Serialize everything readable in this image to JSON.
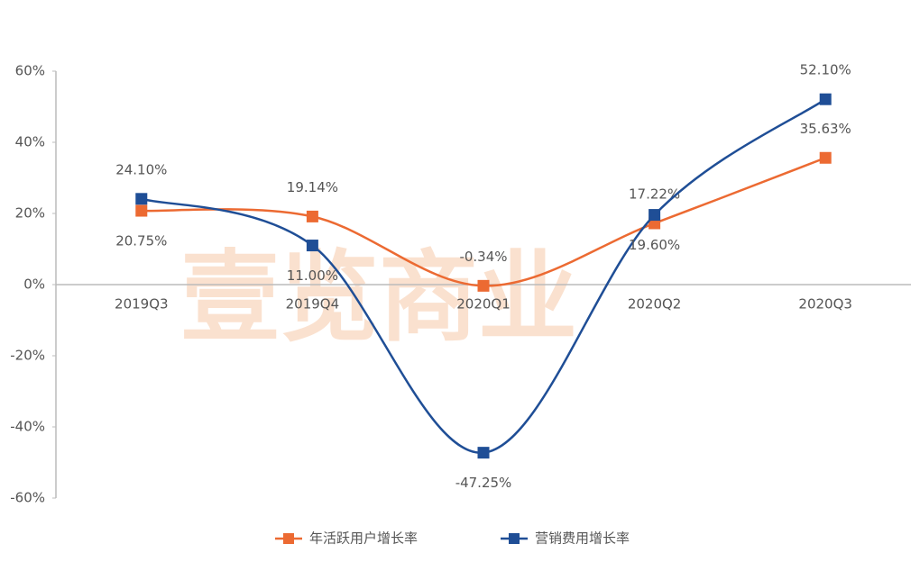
{
  "chart_data": {
    "type": "line",
    "watermark": "壹览商业",
    "categories": [
      "2019Q3",
      "2019Q4",
      "2020Q1",
      "2020Q2",
      "2020Q3"
    ],
    "series": [
      {
        "name": "年活跃用户增长率",
        "color": "#ec6a32",
        "values": [
          20.75,
          19.14,
          -0.34,
          17.22,
          35.63
        ],
        "value_labels": [
          "20.75%",
          "19.14%",
          "-0.34%",
          "17.22%",
          "35.63%"
        ]
      },
      {
        "name": "营销费用增长率",
        "color": "#1f4e96",
        "values": [
          24.1,
          11.0,
          -47.25,
          19.6,
          52.1
        ],
        "value_labels": [
          "24.10%",
          "11.00%",
          "-47.25%",
          "19.60%",
          "52.10%"
        ]
      }
    ],
    "ylim": [
      -60,
      60
    ],
    "yticks": [
      {
        "value": -60,
        "label": "-60%"
      },
      {
        "value": -40,
        "label": "-40%"
      },
      {
        "value": -20,
        "label": "-20%"
      },
      {
        "value": 0,
        "label": "0%"
      },
      {
        "value": 20,
        "label": "20%"
      },
      {
        "value": 40,
        "label": "40%"
      },
      {
        "value": 60,
        "label": "60%"
      }
    ],
    "smooth": true,
    "legend": "bottom"
  }
}
